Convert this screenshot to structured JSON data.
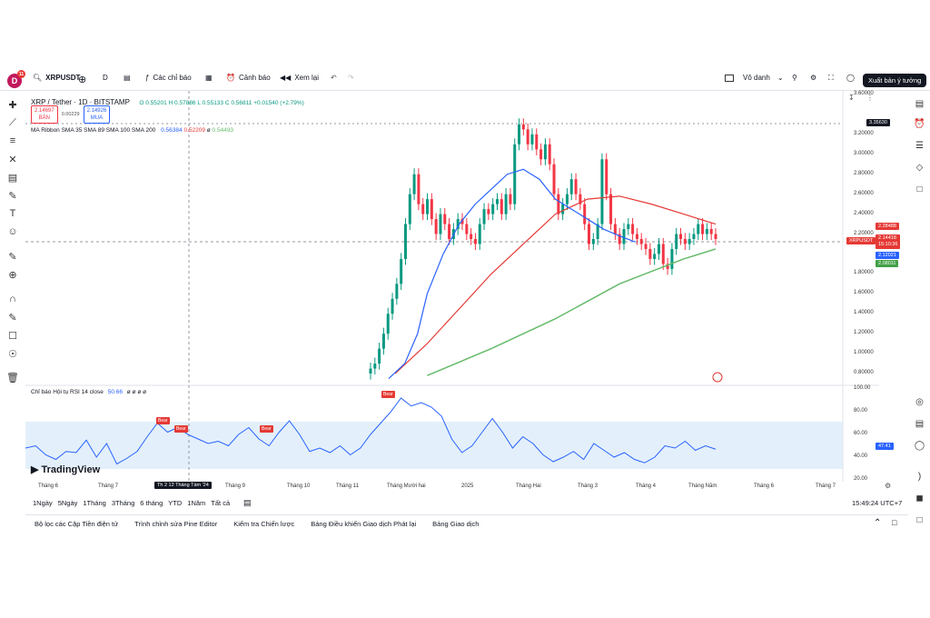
{
  "header": {
    "logo_letter": "D",
    "notif_count": "11",
    "symbol": "XRPUSDT",
    "interval": "D",
    "indicators_label": "Các chỉ báo",
    "alerts_label": "Cảnh báo",
    "replay_label": "Xem lại",
    "layout_name": "Vô danh",
    "publish_label": "Xuất bản ý tưởng"
  },
  "legend": {
    "title": "XRP / Tether · 1D · BITSTAMP",
    "open": "O 0.55201",
    "high": "H 0.57886",
    "low": "L 0.55133",
    "close": "C 0.56811",
    "change": "+0.01540 (+2.79%)",
    "sell_price": "2.14697",
    "sell_label": "BÁN",
    "spread": "0.00229",
    "buy_price": "2.14926",
    "buy_label": "MUA",
    "ma_label": "MA Ribbon SMA 35 SMA 89 SMA 100 SMA 200",
    "ma_v1": "0.56384",
    "ma_v2": "0.52209",
    "ma_v3": "ø",
    "ma_v4": "0.54493"
  },
  "rsi": {
    "label": "Chỉ báo Hội tụ RSI 14 close",
    "value": "50.66",
    "extras": "ø ø ø ø",
    "current": "47.41",
    "bear_labels": [
      "Bear",
      "Bear",
      "Bear",
      "Bear"
    ],
    "levels": [
      "100.00",
      "80.00",
      "60.00",
      "40.00",
      "20.00"
    ]
  },
  "price_axis": {
    "labels": [
      "3.60000",
      "3.20000",
      "3.00000",
      "2.80000",
      "2.60000",
      "2.40000",
      "2.20000",
      "1.80000",
      "1.60000",
      "1.40000",
      "1.20000",
      "1.00000",
      "0.80000"
    ],
    "top_marker": "3.35630",
    "symbol_tag": "XRPUSDT",
    "tag_red": "2.28488",
    "tag_current": "2.14418",
    "tag_timer": "15:10:36",
    "tag_blue": "2.12021",
    "tag_green": "2.08011"
  },
  "time_axis": {
    "labels": [
      "Tháng 6",
      "Tháng 7",
      "Tháng 9",
      "Tháng 10",
      "Tháng 11",
      "Tháng Mười hai",
      "2025",
      "Tháng Hai",
      "Tháng 3",
      "Tháng 4",
      "Tháng Năm",
      "Tháng 6",
      "Tháng 7"
    ],
    "crosshair_label": "Th 2 12 Tháng Tám '24"
  },
  "watermark": "TradingView",
  "ranges": [
    "1Ngày",
    "5Ngày",
    "1Tháng",
    "3Tháng",
    "6 tháng",
    "YTD",
    "1Năm",
    "Tất cả"
  ],
  "clock": "15:49:24 UTC+7",
  "bottom_panels": [
    "Bộ lọc các Cặp Tiền điện tử",
    "Trình chỉnh sửa Pine Editor",
    "Kiểm tra Chiến lược",
    "Bảng Điều khiển Giao dịch Phát lại",
    "Bảng Giao dịch"
  ],
  "colors": {
    "up": "#089981",
    "down": "#f23645",
    "sma_blue": "#2962ff",
    "sma_red": "#e53935",
    "sma_green": "#66bb6a",
    "rsi_line": "#2962ff",
    "rsi_band": "#e3f0fb"
  },
  "chart_data": {
    "type": "candlestick",
    "ylim": [
      0.7,
      3.6
    ],
    "rsi_ylim": [
      20,
      100
    ],
    "candles_close": [
      0.85,
      0.9,
      1.05,
      1.2,
      1.4,
      1.55,
      1.7,
      1.95,
      2.3,
      2.6,
      2.8,
      2.5,
      2.4,
      2.55,
      2.35,
      2.2,
      2.4,
      2.3,
      2.15,
      2.25,
      2.35,
      2.3,
      2.2,
      2.15,
      2.1,
      2.3,
      2.45,
      2.4,
      2.5,
      2.55,
      2.4,
      2.6,
      2.5,
      3.1,
      3.3,
      3.25,
      3.1,
      3.2,
      3.05,
      2.95,
      3.1,
      2.9,
      2.6,
      2.4,
      2.5,
      2.6,
      2.75,
      2.6,
      2.5,
      2.3,
      2.1,
      2.15,
      2.3,
      2.95,
      2.6,
      2.3,
      2.2,
      2.1,
      2.25,
      2.3,
      2.2,
      2.15,
      2.1,
      2.05,
      1.95,
      2.0,
      2.1,
      1.9,
      1.85,
      2.05,
      2.2,
      2.15,
      2.1,
      2.15,
      2.2,
      2.3,
      2.2,
      2.25,
      2.2,
      2.15
    ],
    "sma_blue": [
      [
        0.88,
        0.75
      ],
      [
        0.93,
        0.9
      ],
      [
        0.97,
        1.2
      ],
      [
        1.0,
        1.6
      ],
      [
        1.05,
        2.0
      ],
      [
        1.1,
        2.3
      ],
      [
        1.15,
        2.5
      ],
      [
        1.2,
        2.65
      ],
      [
        1.25,
        2.8
      ],
      [
        1.3,
        2.85
      ],
      [
        1.35,
        2.75
      ],
      [
        1.4,
        2.55
      ],
      [
        1.45,
        2.45
      ],
      [
        1.5,
        2.35
      ],
      [
        1.55,
        2.25
      ],
      [
        1.6,
        2.18
      ],
      [
        1.65,
        2.12
      ]
    ],
    "sma_red": [
      [
        0.9,
        0.8
      ],
      [
        1.0,
        1.1
      ],
      [
        1.1,
        1.45
      ],
      [
        1.2,
        1.8
      ],
      [
        1.3,
        2.1
      ],
      [
        1.4,
        2.4
      ],
      [
        1.5,
        2.55
      ],
      [
        1.6,
        2.58
      ],
      [
        1.7,
        2.5
      ],
      [
        1.8,
        2.4
      ],
      [
        1.9,
        2.3
      ]
    ],
    "sma_green": [
      [
        1.0,
        0.78
      ],
      [
        1.2,
        1.05
      ],
      [
        1.4,
        1.35
      ],
      [
        1.6,
        1.7
      ],
      [
        1.8,
        1.95
      ],
      [
        1.9,
        2.05
      ]
    ],
    "rsi": [
      48,
      50,
      42,
      38,
      45,
      44,
      55,
      40,
      52,
      34,
      39,
      45,
      58,
      70,
      62,
      66,
      60,
      56,
      52,
      54,
      50,
      60,
      66,
      56,
      50,
      62,
      72,
      60,
      45,
      48,
      44,
      50,
      42,
      48,
      60,
      70,
      80,
      92,
      85,
      88,
      84,
      76,
      56,
      44,
      50,
      62,
      74,
      62,
      48,
      58,
      52,
      42,
      36,
      40,
      45,
      38,
      52,
      46,
      40,
      44,
      38,
      35,
      40,
      50,
      48,
      54,
      46,
      50,
      47
    ]
  }
}
